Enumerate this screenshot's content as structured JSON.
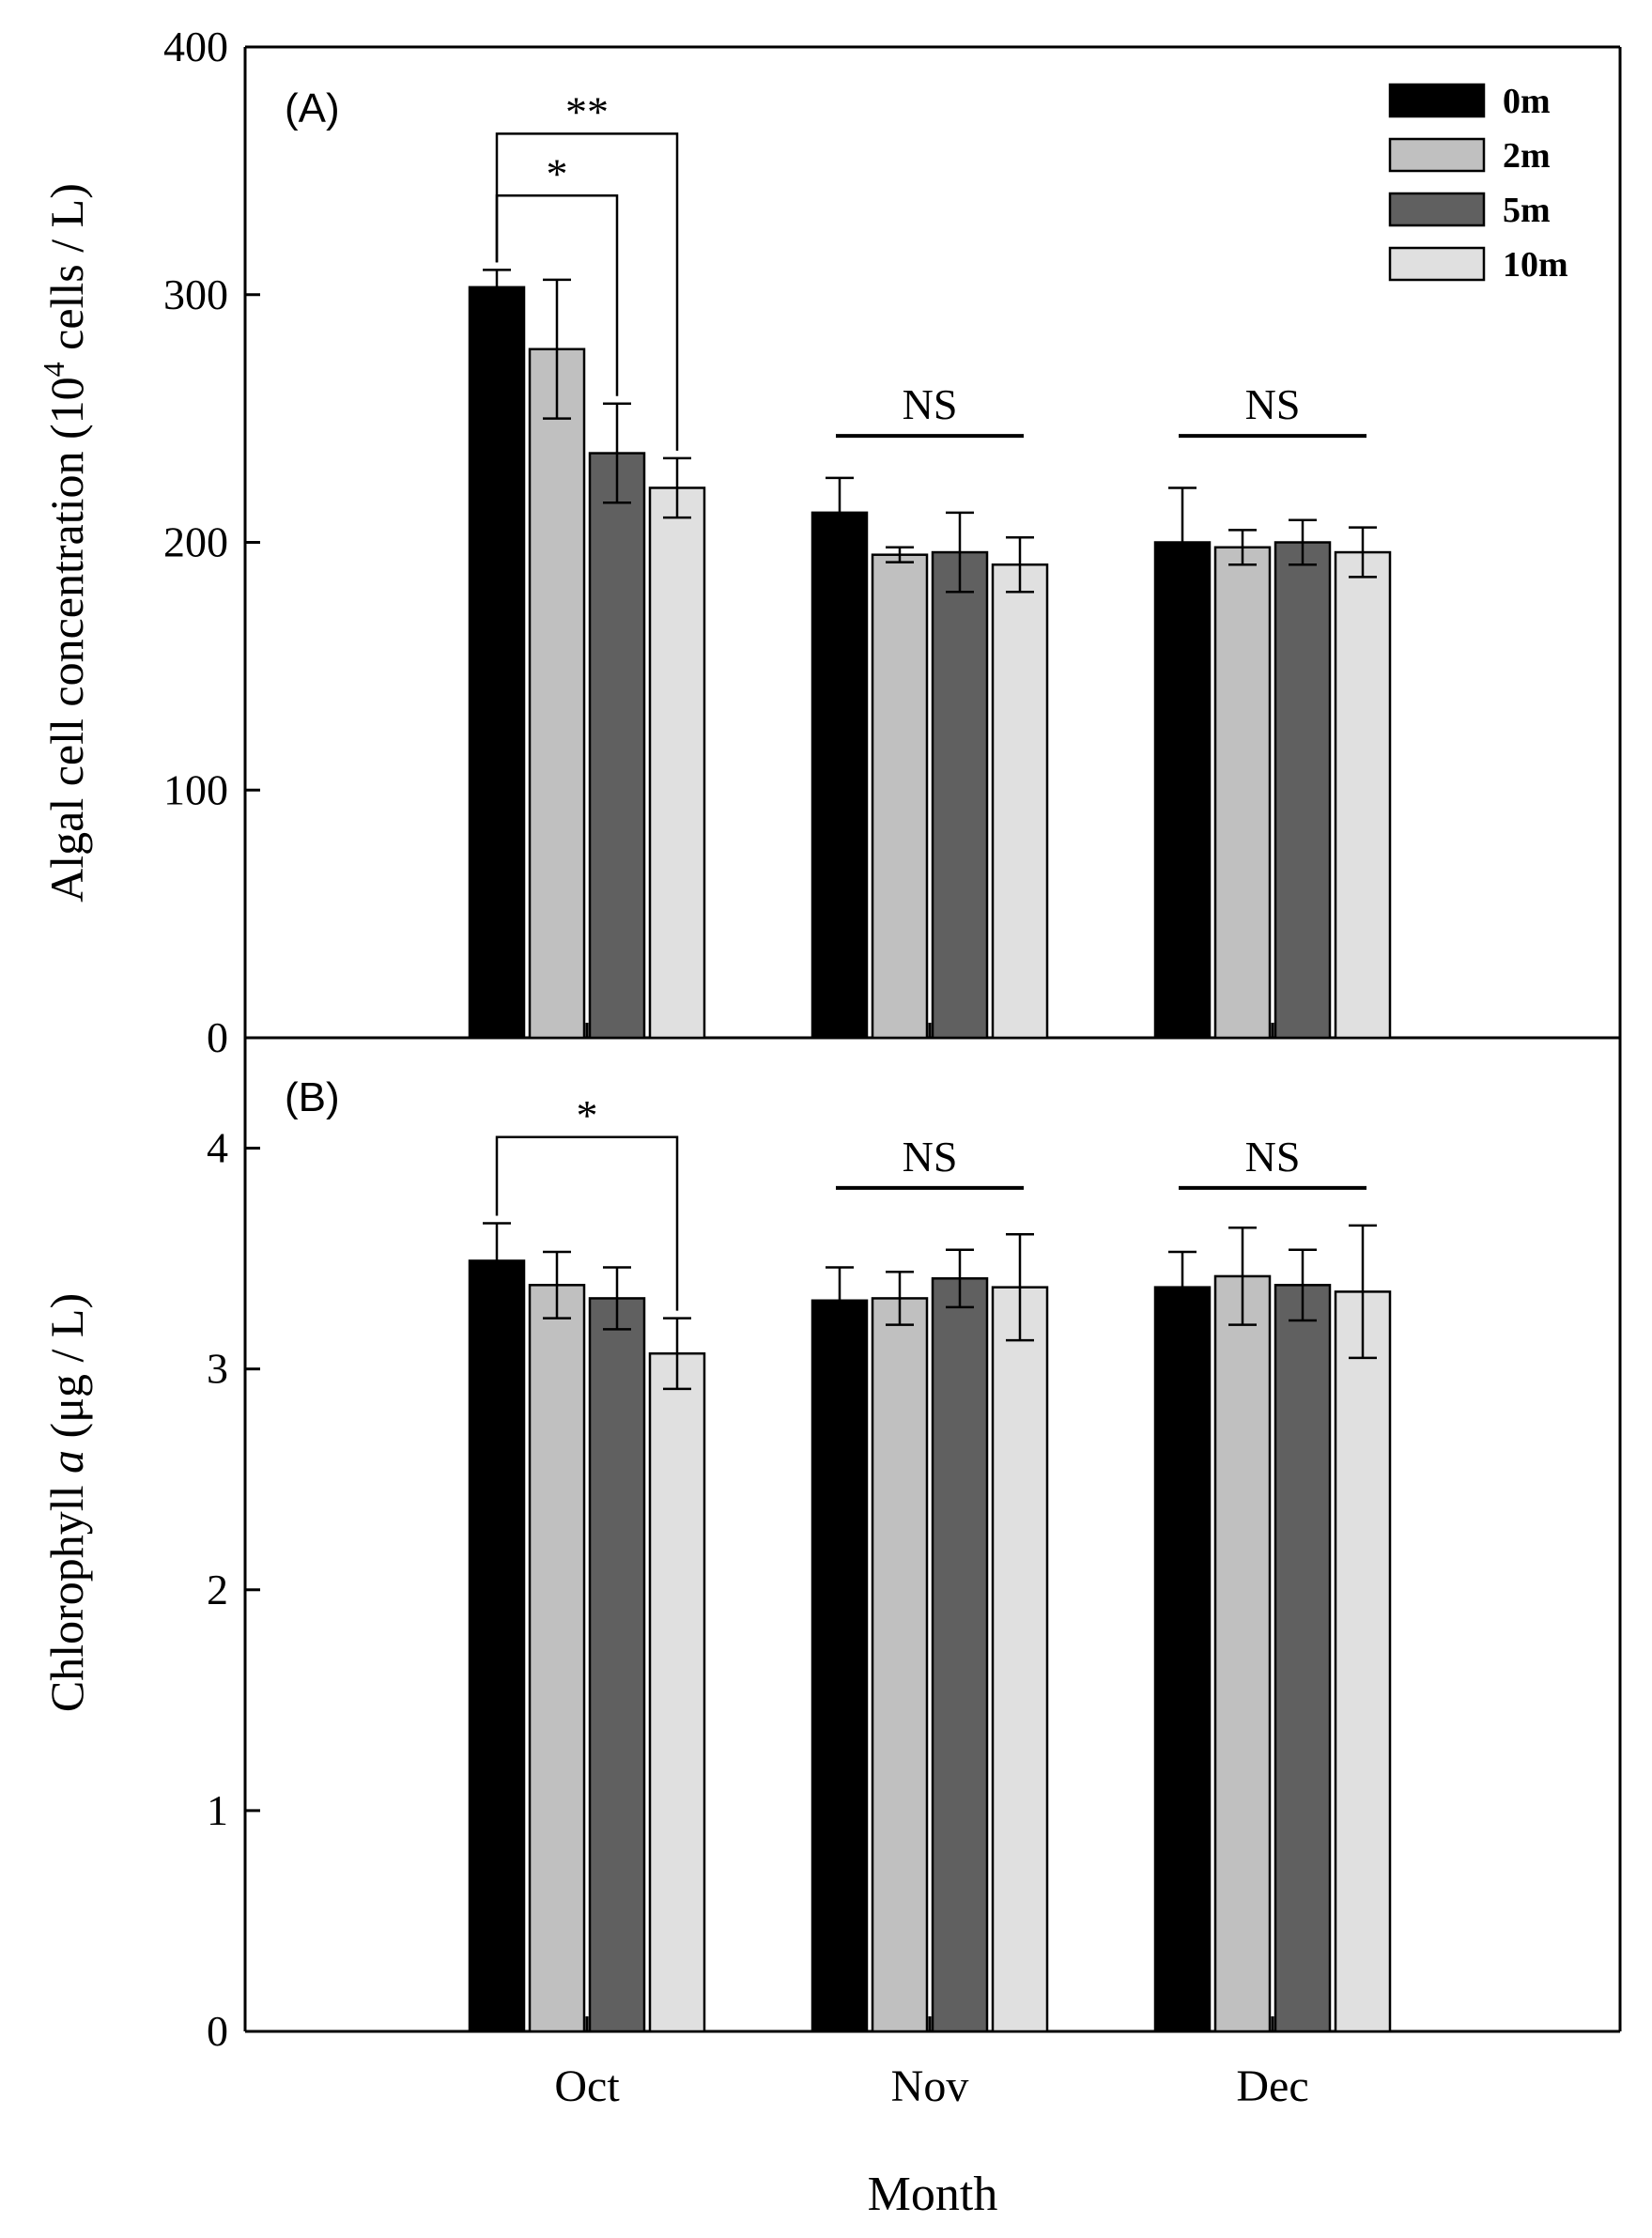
{
  "chart_data": [
    {
      "type": "bar",
      "panel_label": "(A)",
      "categories": [
        "Oct",
        "Nov",
        "Dec"
      ],
      "ylabel_main": "Algal cell concentration (10",
      "ylabel_sup": "4",
      "ylabel_tail": " cells / L)",
      "ylim": [
        0,
        400
      ],
      "yticks": [
        0,
        100,
        200,
        300,
        400
      ],
      "series": [
        {
          "name": "0m",
          "color": "#000000",
          "values": [
            303,
            212,
            200
          ],
          "errors": [
            7,
            14,
            22
          ]
        },
        {
          "name": "2m",
          "color": "#c0c0c0",
          "values": [
            278,
            195,
            198
          ],
          "errors": [
            28,
            3,
            7
          ]
        },
        {
          "name": "5m",
          "color": "#606060",
          "values": [
            236,
            196,
            200
          ],
          "errors": [
            20,
            16,
            9
          ]
        },
        {
          "name": "10m",
          "color": "#e0e0e0",
          "values": [
            222,
            191,
            196
          ],
          "errors": [
            12,
            11,
            10
          ]
        }
      ],
      "annotations": [
        {
          "category": 0,
          "from": 0,
          "to": 3,
          "text": "**",
          "type": "bracket",
          "level": 365
        },
        {
          "category": 0,
          "from": 0,
          "to": 2,
          "text": "*",
          "type": "bracket",
          "level": 340
        },
        {
          "category": 1,
          "from": 0,
          "to": 3,
          "text": "NS",
          "type": "line",
          "level": 243
        },
        {
          "category": 2,
          "from": 0,
          "to": 3,
          "text": "NS",
          "type": "line",
          "level": 243
        }
      ],
      "legend": {
        "placement": "top-right",
        "entries": [
          "0m",
          "2m",
          "5m",
          "10m"
        ]
      }
    },
    {
      "type": "bar",
      "panel_label": "(B)",
      "categories": [
        "Oct",
        "Nov",
        "Dec"
      ],
      "ylabel_main": "Chlorophyll ",
      "ylabel_italic": "a",
      "ylabel_tail": " (μg / L)",
      "xlabel": "Month",
      "ylim": [
        0,
        4.5
      ],
      "yticks": [
        0,
        1,
        2,
        3,
        4
      ],
      "series": [
        {
          "name": "0m",
          "color": "#000000",
          "values": [
            3.49,
            3.31,
            3.37
          ],
          "errors": [
            0.17,
            0.15,
            0.16
          ]
        },
        {
          "name": "2m",
          "color": "#c0c0c0",
          "values": [
            3.38,
            3.32,
            3.42
          ],
          "errors": [
            0.15,
            0.12,
            0.22
          ]
        },
        {
          "name": "5m",
          "color": "#606060",
          "values": [
            3.32,
            3.41,
            3.38
          ],
          "errors": [
            0.14,
            0.13,
            0.16
          ]
        },
        {
          "name": "10m",
          "color": "#e0e0e0",
          "values": [
            3.07,
            3.37,
            3.35
          ],
          "errors": [
            0.16,
            0.24,
            0.3
          ]
        }
      ],
      "annotations": [
        {
          "category": 0,
          "from": 0,
          "to": 3,
          "text": "*",
          "type": "bracket",
          "level": 4.05
        },
        {
          "category": 1,
          "from": 0,
          "to": 3,
          "text": "NS",
          "type": "line",
          "level": 3.82
        },
        {
          "category": 2,
          "from": 0,
          "to": 3,
          "text": "NS",
          "type": "line",
          "level": 3.82
        }
      ]
    }
  ]
}
